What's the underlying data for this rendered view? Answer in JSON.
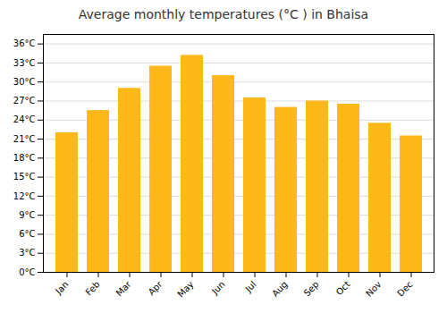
{
  "chart_data": {
    "type": "bar",
    "title": "Average monthly temperatures (°C ) in Bhaisa",
    "categories": [
      "Jan",
      "Feb",
      "Mar",
      "Apr",
      "May",
      "Jun",
      "Jul",
      "Aug",
      "Sep",
      "Oct",
      "Nov",
      "Dec"
    ],
    "values": [
      22.0,
      25.5,
      29.0,
      32.5,
      34.2,
      31.0,
      27.5,
      26.0,
      27.0,
      26.5,
      23.5,
      21.5
    ],
    "color": "#ffb81a",
    "ylim": [
      0,
      37.5
    ],
    "yticks": [
      {
        "value": 0,
        "label": "0°C"
      },
      {
        "value": 3,
        "label": "3°C"
      },
      {
        "value": 6,
        "label": "6°C"
      },
      {
        "value": 9,
        "label": "9°C"
      },
      {
        "value": 12,
        "label": "12°C"
      },
      {
        "value": 15,
        "label": "15°C"
      },
      {
        "value": 18,
        "label": "18°C"
      },
      {
        "value": 21,
        "label": "21°C"
      },
      {
        "value": 24,
        "label": "24°C"
      },
      {
        "value": 27,
        "label": "27°C"
      },
      {
        "value": 30,
        "label": "30°C"
      },
      {
        "value": 33,
        "label": "33°C"
      },
      {
        "value": 36,
        "label": "36°C"
      }
    ],
    "grid": true
  }
}
